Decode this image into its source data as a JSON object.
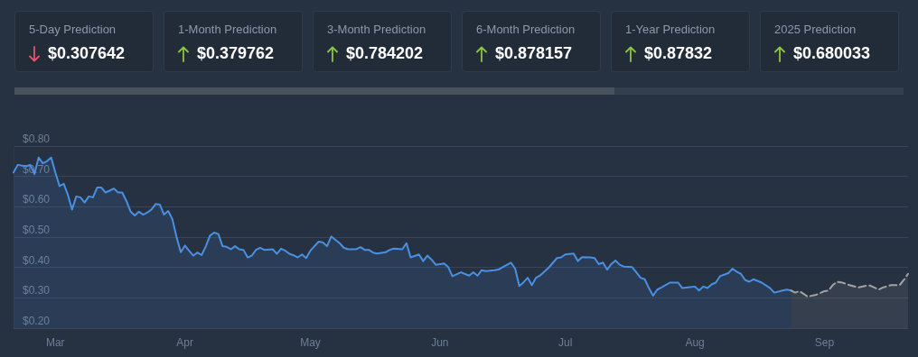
{
  "chart_data": [
    {
      "type": "other",
      "categories": [
        "5-Day Prediction",
        "1-Month Prediction",
        "3-Month Prediction",
        "6-Month Prediction",
        "1-Year Prediction",
        "2025 Prediction"
      ],
      "values": [
        0.307642,
        0.379762,
        0.784202,
        0.878157,
        0.87832,
        0.680033
      ],
      "value_labels": [
        "$0.307642",
        "$0.379762",
        "$0.784202",
        "$0.878157",
        "$0.87832",
        "$0.680033"
      ]
    },
    {
      "type": "area",
      "grid": "y",
      "xlim": [
        "--02-20",
        "--09-21"
      ],
      "xticks": [
        {
          "value": "--03-01",
          "label": "Mar"
        },
        {
          "value": "--04-01",
          "label": "Apr"
        },
        {
          "value": "--05-01",
          "label": "May"
        },
        {
          "value": "--06-01",
          "label": "Jun"
        },
        {
          "value": "--07-01",
          "label": "Jul"
        },
        {
          "value": "--08-01",
          "label": "Aug"
        },
        {
          "value": "--09-01",
          "label": "Sep"
        }
      ],
      "ylim": [
        0.2,
        0.8
      ],
      "yticks": [
        {
          "value": 0.2,
          "label": "$0.20"
        },
        {
          "value": 0.3,
          "label": "$0.30"
        },
        {
          "value": 0.4,
          "label": "$0.40"
        },
        {
          "value": 0.5,
          "label": "$0.50"
        },
        {
          "value": 0.6,
          "label": "$0.60"
        },
        {
          "value": 0.7,
          "label": "$0.70"
        },
        {
          "value": 0.8,
          "label": "$0.80"
        }
      ],
      "series": [
        {
          "color": "#4a90e2",
          "line_style": "solid",
          "x": [
            "--02-20",
            "--02-21",
            "--02-23",
            "--02-24",
            "--02-25",
            "--02-26",
            "--02-27",
            "--02-28",
            "--02-29",
            "--03-01",
            "--03-02",
            "--03-03",
            "--03-04",
            "--03-05",
            "--03-06",
            "--03-07",
            "--03-08",
            "--03-09",
            "--03-10",
            "--03-11",
            "--03-12",
            "--03-13",
            "--03-14",
            "--03-15",
            "--03-16",
            "--03-17",
            "--03-18",
            "--03-19",
            "--03-20",
            "--03-21",
            "--03-22",
            "--03-23",
            "--03-24",
            "--03-25",
            "--03-26",
            "--03-27",
            "--03-28",
            "--03-29",
            "--03-30",
            "--03-31",
            "--04-01",
            "--04-02",
            "--04-03",
            "--04-04",
            "--04-05",
            "--04-06",
            "--04-07",
            "--04-08",
            "--04-09",
            "--04-10",
            "--04-11",
            "--04-12",
            "--04-13",
            "--04-14",
            "--04-15",
            "--04-16",
            "--04-17",
            "--04-18",
            "--04-19",
            "--04-20",
            "--04-22",
            "--04-23",
            "--04-24",
            "--04-25",
            "--04-26",
            "--04-27",
            "--04-28",
            "--04-29",
            "--04-30",
            "--05-01",
            "--05-03",
            "--05-04",
            "--05-05",
            "--05-06",
            "--05-08",
            "--05-09",
            "--05-10",
            "--05-12",
            "--05-13",
            "--05-14",
            "--05-15",
            "--05-16",
            "--05-17",
            "--05-19",
            "--05-20",
            "--05-21",
            "--05-23",
            "--05-24",
            "--05-25",
            "--05-27",
            "--05-28",
            "--05-29",
            "--05-30",
            "--05-31",
            "--06-02",
            "--06-03",
            "--06-04",
            "--06-06",
            "--06-08",
            "--06-09",
            "--06-10",
            "--06-11",
            "--06-12",
            "--06-14",
            "--06-15",
            "--06-16",
            "--06-18",
            "--06-19",
            "--06-20",
            "--06-21",
            "--06-22",
            "--06-23",
            "--06-24",
            "--06-25",
            "--06-27",
            "--06-29",
            "--06-30",
            "--07-01",
            "--07-03",
            "--07-04",
            "--07-05",
            "--07-07",
            "--07-08",
            "--07-09",
            "--07-10",
            "--07-11",
            "--07-12",
            "--07-13",
            "--07-14",
            "--07-15",
            "--07-17",
            "--07-18",
            "--07-19",
            "--07-20",
            "--07-21",
            "--07-22",
            "--07-23",
            "--07-24",
            "--07-26",
            "--07-28",
            "--07-29",
            "--08-01",
            "--08-02",
            "--08-03",
            "--08-04",
            "--08-05",
            "--08-06",
            "--08-07",
            "--08-09",
            "--08-10",
            "--08-11",
            "--08-12",
            "--08-13",
            "--08-14",
            "--08-15",
            "--08-17",
            "--08-19",
            "--08-20",
            "--08-22",
            "--08-23",
            "--08-24"
          ],
          "values": [
            0.713,
            0.738,
            0.733,
            0.738,
            0.708,
            0.762,
            0.743,
            0.75,
            0.762,
            0.713,
            0.668,
            0.676,
            0.639,
            0.591,
            0.634,
            0.631,
            0.614,
            0.634,
            0.631,
            0.663,
            0.663,
            0.647,
            0.653,
            0.66,
            0.647,
            0.647,
            0.619,
            0.584,
            0.571,
            0.584,
            0.574,
            0.581,
            0.591,
            0.609,
            0.607,
            0.574,
            0.586,
            0.559,
            0.5,
            0.45,
            0.472,
            0.455,
            0.439,
            0.449,
            0.441,
            0.47,
            0.505,
            0.515,
            0.51,
            0.47,
            0.468,
            0.46,
            0.47,
            0.46,
            0.458,
            0.433,
            0.439,
            0.458,
            0.465,
            0.458,
            0.46,
            0.445,
            0.462,
            0.455,
            0.445,
            0.44,
            0.433,
            0.443,
            0.431,
            0.455,
            0.485,
            0.482,
            0.47,
            0.502,
            0.48,
            0.465,
            0.46,
            0.46,
            0.467,
            0.458,
            0.458,
            0.449,
            0.446,
            0.45,
            0.458,
            0.462,
            0.46,
            0.48,
            0.433,
            0.443,
            0.421,
            0.439,
            0.426,
            0.409,
            0.413,
            0.401,
            0.371,
            0.384,
            0.373,
            0.384,
            0.373,
            0.391,
            0.388,
            0.391,
            0.393,
            0.401,
            0.416,
            0.396,
            0.339,
            0.351,
            0.366,
            0.342,
            0.366,
            0.374,
            0.399,
            0.431,
            0.433,
            0.443,
            0.446,
            0.421,
            0.434,
            0.433,
            0.431,
            0.411,
            0.416,
            0.393,
            0.411,
            0.423,
            0.409,
            0.403,
            0.401,
            0.384,
            0.366,
            0.361,
            0.332,
            0.307,
            0.327,
            0.334,
            0.35,
            0.35,
            0.332,
            0.337,
            0.324,
            0.337,
            0.332,
            0.344,
            0.35,
            0.371,
            0.381,
            0.396,
            0.386,
            0.379,
            0.359,
            0.353,
            0.361,
            0.35,
            0.332,
            0.317,
            0.324,
            0.327,
            0.324
          ]
        },
        {
          "color": "#a3a3a3",
          "line_style": "dashed",
          "x": [
            "--08-24",
            "--08-25",
            "--08-26",
            "--08-28",
            "--08-30",
            "--09-01",
            "--09-02",
            "--09-03",
            "--09-04",
            "--09-05",
            "--09-07",
            "--09-09",
            "--09-11",
            "--09-12",
            "--09-14",
            "--09-15",
            "--09-17",
            "--09-19",
            "--09-20",
            "--09-21"
          ],
          "values": [
            0.324,
            0.317,
            0.322,
            0.304,
            0.31,
            0.322,
            0.324,
            0.342,
            0.353,
            0.351,
            0.342,
            0.334,
            0.34,
            0.34,
            0.327,
            0.334,
            0.342,
            0.342,
            0.359,
            0.379
          ]
        }
      ]
    }
  ]
}
